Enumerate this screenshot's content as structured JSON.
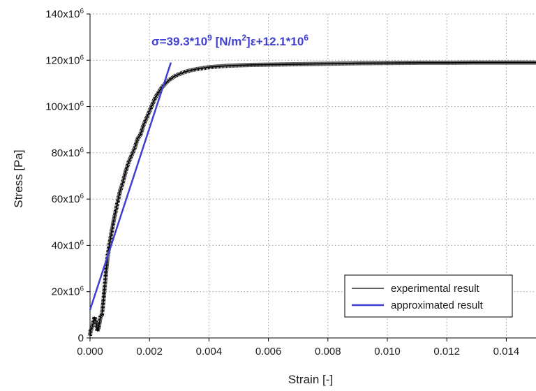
{
  "chart_data": {
    "type": "line",
    "xlabel": "Strain [-]",
    "ylabel": "Stress [Pa]",
    "xlim": [
      0,
      0.015
    ],
    "ylim": [
      0,
      140000000
    ],
    "grid": true,
    "x_ticks": [
      {
        "value": 0.0,
        "label": "0.000"
      },
      {
        "value": 0.002,
        "label": "0.002"
      },
      {
        "value": 0.004,
        "label": "0.004"
      },
      {
        "value": 0.006,
        "label": "0.006"
      },
      {
        "value": 0.008,
        "label": "0.008"
      },
      {
        "value": 0.01,
        "label": "0.010"
      },
      {
        "value": 0.012,
        "label": "0.012"
      },
      {
        "value": 0.014,
        "label": "0.014"
      }
    ],
    "y_ticks": [
      {
        "value": 0,
        "mantissa": "0",
        "exp": ""
      },
      {
        "value": 20000000,
        "mantissa": "20x10",
        "exp": "6"
      },
      {
        "value": 40000000,
        "mantissa": "40x10",
        "exp": "6"
      },
      {
        "value": 60000000,
        "mantissa": "60x10",
        "exp": "6"
      },
      {
        "value": 80000000,
        "mantissa": "80x10",
        "exp": "6"
      },
      {
        "value": 100000000,
        "mantissa": "100x10",
        "exp": "6"
      },
      {
        "value": 120000000,
        "mantissa": "120x10",
        "exp": "6"
      },
      {
        "value": 140000000,
        "mantissa": "140x10",
        "exp": "6"
      }
    ],
    "legend_position": "bottom-right",
    "series": [
      {
        "name": "experimental result",
        "color": "#000000",
        "x": [
          0.0,
          2e-05,
          5e-05,
          0.0001,
          0.00015,
          0.0002,
          0.00025,
          0.0003,
          0.00035,
          0.0004,
          0.00045,
          0.0005,
          0.00055,
          0.0006,
          0.0007,
          0.0008,
          0.0009,
          0.001,
          0.0011,
          0.0012,
          0.0013,
          0.0014,
          0.0015,
          0.0016,
          0.0017,
          0.0018,
          0.0019,
          0.002,
          0.0021,
          0.0022,
          0.0023,
          0.0024,
          0.0025,
          0.0026,
          0.0027,
          0.0028,
          0.0029,
          0.003,
          0.0032,
          0.0034,
          0.0036,
          0.0038,
          0.004,
          0.0043,
          0.0046,
          0.005,
          0.0055,
          0.006,
          0.007,
          0.008,
          0.009,
          0.01,
          0.011,
          0.012,
          0.013,
          0.014,
          0.015
        ],
        "y": [
          1000000,
          3000000,
          4000000,
          6000000,
          9000000,
          7000000,
          3000000,
          5000000,
          9000000,
          10000000,
          16000000,
          23000000,
          30000000,
          36000000,
          44000000,
          51000000,
          57000000,
          63000000,
          67000000,
          72000000,
          76000000,
          79000000,
          82000000,
          86000000,
          88000000,
          92000000,
          95000000,
          98000000,
          101000000,
          104000000,
          106000000,
          108000000,
          109500000,
          110800000,
          111800000,
          112700000,
          113500000,
          114000000,
          115000000,
          115700000,
          116200000,
          116600000,
          117000000,
          117300000,
          117600000,
          117800000,
          118000000,
          118100000,
          118300000,
          118500000,
          118700000,
          118800000,
          118900000,
          118900000,
          119000000,
          119000000,
          119000000
        ]
      },
      {
        "name": "approximated result",
        "color": "#3f3fd0",
        "x": [
          0.0,
          0.00272
        ],
        "y": [
          12100000,
          119000000
        ]
      }
    ],
    "annotation": {
      "color": "#3f3fd0",
      "parts": [
        {
          "text": "σ=39.3*10",
          "sup": false
        },
        {
          "text": "9",
          "sup": true
        },
        {
          "text": " [N/m",
          "sup": false
        },
        {
          "text": "2",
          "sup": true
        },
        {
          "text": "]ε+12.1*10",
          "sup": false
        },
        {
          "text": "6",
          "sup": true
        }
      ]
    }
  }
}
